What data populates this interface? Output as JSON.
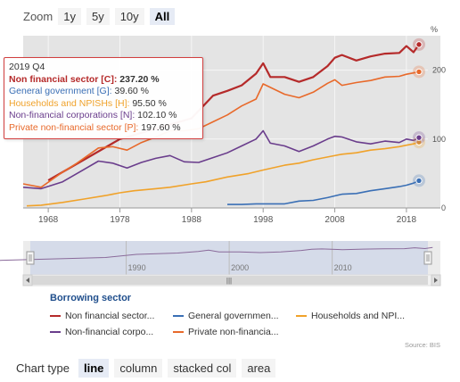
{
  "zoom": {
    "label": "Zoom",
    "buttons": [
      "1y",
      "5y",
      "10y",
      "All"
    ],
    "active": "All"
  },
  "tooltip": {
    "header": "2019 Q4",
    "rows": [
      {
        "name": "Non financial sector [C]:",
        "value": "237.20 %",
        "color": "#b52a2a",
        "bold": true
      },
      {
        "name": "General government [G]:",
        "value": "39.60 %",
        "color": "#3a6fb5",
        "bold": false
      },
      {
        "name": "Households and NPISHs [H]:",
        "value": "95.50 %",
        "color": "#f0a22a",
        "bold": false
      },
      {
        "name": "Non-financial corporations [N]:",
        "value": "102.10 %",
        "color": "#6a3d8c",
        "bold": false
      },
      {
        "name": "Private non-financial sector [P]:",
        "value": "197.60 %",
        "color": "#e8692a",
        "bold": false
      }
    ]
  },
  "legend": {
    "title": "Borrowing sector",
    "items": [
      {
        "label": "Non financial sector...",
        "color": "#b52a2a"
      },
      {
        "label": "General governmen...",
        "color": "#3a6fb5"
      },
      {
        "label": "Households and NPI...",
        "color": "#f0a22a"
      },
      {
        "label": "Non-financial corpo...",
        "color": "#6a3d8c"
      },
      {
        "label": "Private non-financia...",
        "color": "#e8692a"
      }
    ]
  },
  "source": "Source: BIS",
  "chart_type": {
    "label": "Chart type",
    "buttons": [
      "line",
      "column",
      "stacked col",
      "area"
    ],
    "active": "line"
  },
  "chart_data": {
    "type": "line",
    "y_unit": "%",
    "ylim": [
      0,
      250
    ],
    "y_ticks": [
      "0",
      "100",
      "200"
    ],
    "y_tick_values": [
      0,
      100,
      200
    ],
    "x_ticks": [
      "1968",
      "1978",
      "1988",
      "1998",
      "2008",
      "2018"
    ],
    "x_tick_values": [
      1968,
      1978,
      1988,
      1998,
      2008,
      2018
    ],
    "xlim": [
      1964.5,
      2020.5
    ],
    "navigator_ticks": [
      "1990",
      "2000",
      "2010"
    ],
    "navigator_tick_values": [
      1990,
      2000,
      2010
    ],
    "navigator_xlim": [
      1980,
      2020.5
    ],
    "series": [
      {
        "name": "Non financial sector [C]",
        "color": "#b52a2a",
        "x": [
          1968,
          1978,
          1988,
          1991,
          1993,
          1995,
          1997,
          1998,
          1999,
          2001,
          2003,
          2005,
          2007,
          2008,
          2009,
          2011,
          2013,
          2015,
          2017,
          2018,
          2019,
          2019.75
        ],
        "y": [
          40,
          100,
          130,
          163,
          170,
          178,
          195,
          210,
          190,
          190,
          183,
          190,
          206,
          218,
          222,
          214,
          220,
          224,
          225,
          235,
          226,
          237.2
        ]
      },
      {
        "name": "General government [G]",
        "color": "#3a6fb5",
        "x": [
          1993,
          1995,
          1997,
          2001,
          2003,
          2005,
          2007,
          2009,
          2011,
          2013,
          2015,
          2017,
          2018,
          2019,
          2019.75
        ],
        "y": [
          5,
          5,
          6,
          6,
          10,
          11,
          15,
          20,
          21,
          25,
          28,
          31,
          33,
          36,
          39.6
        ]
      },
      {
        "name": "Households and NPISHs [H]",
        "color": "#f0a22a",
        "x": [
          1965,
          1967,
          1970,
          1973,
          1976,
          1978,
          1980,
          1983,
          1985,
          1988,
          1990,
          1993,
          1996,
          1998,
          2001,
          2003,
          2005,
          2007,
          2009,
          2011,
          2013,
          2015,
          2017,
          2018,
          2019,
          2019.75
        ],
        "y": [
          3,
          4,
          8,
          13,
          18,
          22,
          25,
          28,
          30,
          35,
          38,
          45,
          50,
          55,
          62,
          65,
          70,
          74,
          78,
          80,
          84,
          86,
          89,
          91,
          93,
          95.5
        ]
      },
      {
        "name": "Non-financial corporations [N]",
        "color": "#6a3d8c",
        "x": [
          1964.5,
          1967,
          1970,
          1972,
          1975,
          1977,
          1979,
          1981,
          1983,
          1985,
          1987,
          1989,
          1991,
          1993,
          1995,
          1997,
          1998,
          1999,
          2001,
          2003,
          2005,
          2007,
          2008,
          2009,
          2011,
          2013,
          2015,
          2017,
          2018,
          2019,
          2019.75
        ],
        "y": [
          30,
          28,
          38,
          50,
          68,
          65,
          58,
          66,
          72,
          76,
          67,
          66,
          73,
          80,
          90,
          100,
          112,
          94,
          90,
          82,
          90,
          100,
          104,
          103,
          96,
          93,
          97,
          95,
          100,
          98,
          102.1
        ]
      },
      {
        "name": "Private non-financial sector [P]",
        "color": "#e8692a",
        "x": [
          1964.5,
          1967,
          1970,
          1972,
          1975,
          1977,
          1979,
          1981,
          1983,
          1985,
          1987,
          1989,
          1991,
          1993,
          1995,
          1997,
          1998,
          1999,
          2001,
          2003,
          2005,
          2007,
          2008,
          2009,
          2011,
          2013,
          2015,
          2017,
          2018,
          2019,
          2019.75
        ],
        "y": [
          35,
          30,
          52,
          65,
          87,
          89,
          84,
          95,
          103,
          112,
          112,
          115,
          125,
          135,
          148,
          158,
          180,
          175,
          165,
          160,
          168,
          181,
          186,
          178,
          182,
          185,
          190,
          191,
          194,
          196,
          197.6
        ]
      }
    ]
  }
}
